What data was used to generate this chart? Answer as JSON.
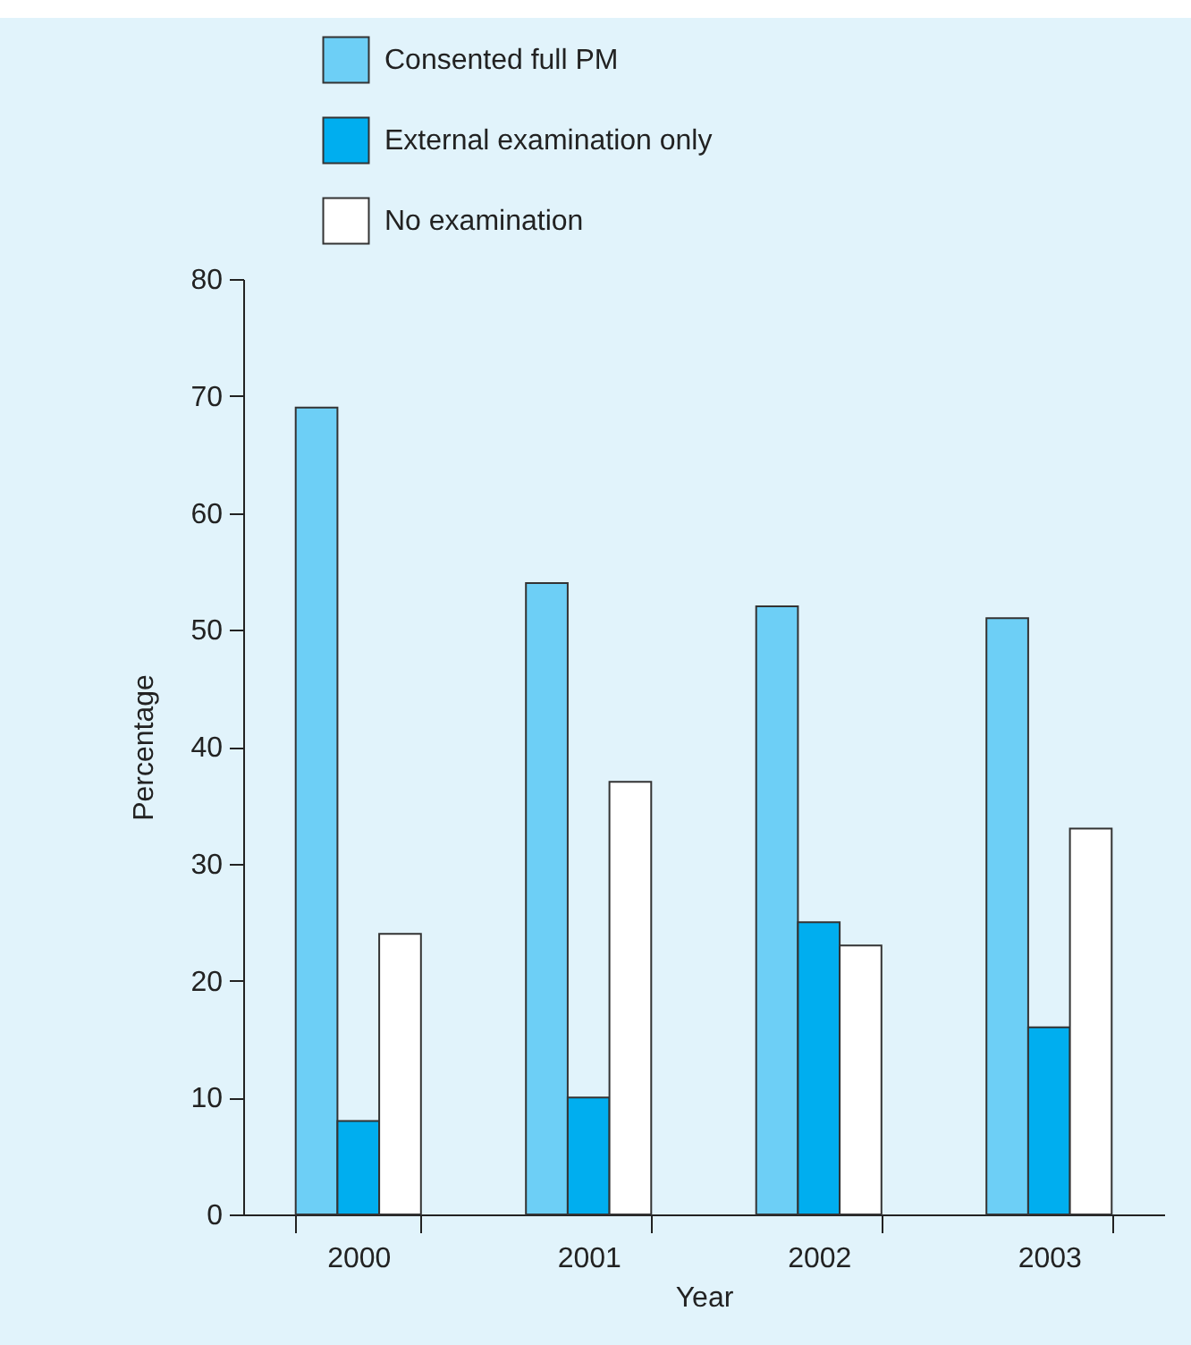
{
  "chart_data": {
    "type": "bar",
    "xlabel": "Year",
    "ylabel": "Percentage",
    "categories": [
      "2000",
      "2001",
      "2002",
      "2003"
    ],
    "series": [
      {
        "name": "Consented full PM",
        "color": "#6dcff6",
        "values": [
          69,
          54,
          52,
          51
        ]
      },
      {
        "name": "External examination only",
        "color": "#00aeef",
        "values": [
          8,
          10,
          25,
          16
        ]
      },
      {
        "name": "No examination",
        "color": "#ffffff",
        "values": [
          24,
          37,
          23,
          33
        ]
      }
    ],
    "ylim": [
      0,
      80
    ],
    "yticks": [
      0,
      10,
      20,
      30,
      40,
      50,
      60,
      70,
      80
    ],
    "grid": false,
    "legend": "top left"
  }
}
